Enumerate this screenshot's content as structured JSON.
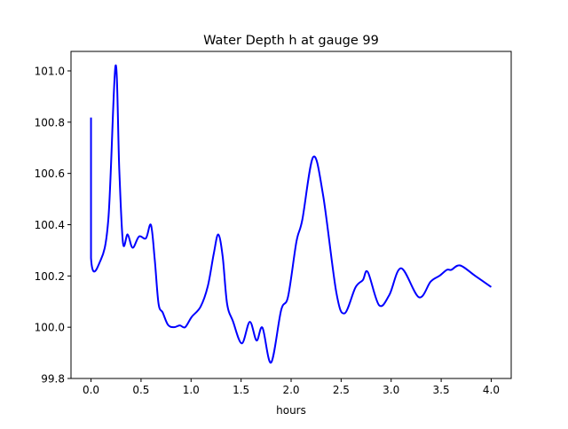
{
  "chart_data": {
    "type": "line",
    "title": "Water Depth h at gauge 99",
    "xlabel": "hours",
    "ylabel": "",
    "xlim": [
      -0.2,
      4.2
    ],
    "ylim": [
      99.8,
      101.076
    ],
    "xticks": [
      0.0,
      0.5,
      1.0,
      1.5,
      2.0,
      2.5,
      3.0,
      3.5,
      4.0
    ],
    "xtick_labels": [
      "0.0",
      "0.5",
      "1.0",
      "1.5",
      "2.0",
      "2.5",
      "3.0",
      "3.5",
      "4.0"
    ],
    "yticks": [
      99.8,
      100.0,
      100.2,
      100.4,
      100.6,
      100.8,
      101.0
    ],
    "ytick_labels": [
      "99.8",
      "100.0",
      "100.2",
      "100.4",
      "100.6",
      "100.8",
      "101.0"
    ],
    "grid": false,
    "series": [
      {
        "name": "h",
        "color": "#0000ff",
        "x": [
          0.0,
          0.0,
          0.09,
          0.174,
          0.245,
          0.283,
          0.32,
          0.366,
          0.416,
          0.48,
          0.549,
          0.599,
          0.637,
          0.675,
          0.717,
          0.77,
          0.829,
          0.888,
          0.941,
          1.006,
          1.095,
          1.168,
          1.227,
          1.272,
          1.316,
          1.36,
          1.419,
          1.507,
          1.587,
          1.655,
          1.714,
          1.8,
          1.9,
          1.97,
          2.053,
          2.112,
          2.221,
          2.319,
          2.451,
          2.534,
          2.643,
          2.717,
          2.767,
          2.879,
          2.982,
          3.1,
          3.277,
          3.395,
          3.484,
          3.558,
          3.602,
          3.69,
          3.838,
          4.0
        ],
        "y": [
          100.818,
          100.27,
          100.256,
          100.425,
          101.02,
          100.61,
          100.328,
          100.362,
          100.31,
          100.354,
          100.347,
          100.399,
          100.264,
          100.092,
          100.057,
          100.009,
          100.0,
          100.007,
          100.0,
          100.04,
          100.08,
          100.161,
          100.287,
          100.362,
          100.276,
          100.092,
          100.023,
          99.937,
          100.021,
          99.948,
          99.998,
          99.862,
          100.066,
          100.12,
          100.333,
          100.419,
          100.664,
          100.517,
          100.138,
          100.054,
          100.155,
          100.184,
          100.215,
          100.086,
          100.126,
          100.23,
          100.117,
          100.178,
          100.201,
          100.224,
          100.224,
          100.241,
          100.201,
          100.157
        ]
      }
    ]
  }
}
